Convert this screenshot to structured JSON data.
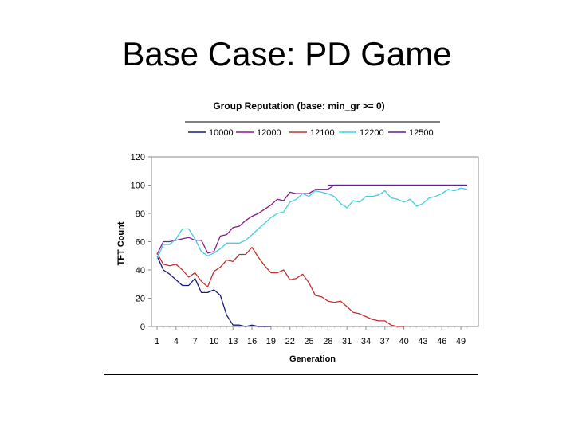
{
  "slide": {
    "title": "Base Case: PD Game"
  },
  "chart_data": {
    "type": "line",
    "title": "Group Reputation (base: min_gr >= 0)",
    "xlabel": "Generation",
    "ylabel": "TFT Count",
    "ylim": [
      0,
      120
    ],
    "yticks": [
      0,
      20,
      40,
      60,
      80,
      100,
      120
    ],
    "xlim": [
      1,
      50
    ],
    "xticks": [
      1,
      4,
      7,
      10,
      13,
      16,
      19,
      22,
      25,
      28,
      31,
      34,
      37,
      40,
      43,
      46,
      49
    ],
    "legend_position": "top",
    "grid": false,
    "series": [
      {
        "name": "10000",
        "color": "#1a1a7a",
        "x": [
          1,
          2,
          3,
          4,
          5,
          6,
          7,
          8,
          9,
          10,
          11,
          12,
          13,
          14,
          15,
          16,
          17,
          18,
          19
        ],
        "values": [
          50,
          40,
          37,
          33,
          29,
          29,
          34,
          24,
          24,
          26,
          22,
          8,
          1,
          1,
          0,
          1,
          0,
          0,
          0
        ]
      },
      {
        "name": "12000",
        "color": "#8a1a8a",
        "x": [
          1,
          2,
          3,
          4,
          5,
          6,
          7,
          8,
          9,
          10,
          11,
          12,
          13,
          14,
          15,
          16,
          17,
          18,
          19,
          20,
          21,
          22,
          23,
          24,
          25,
          26,
          27,
          28,
          29,
          30,
          31,
          32,
          33,
          34,
          35,
          36,
          37,
          38,
          39,
          40,
          41,
          42,
          43,
          44,
          45,
          46,
          47,
          48,
          49,
          50
        ],
        "values": [
          51,
          60,
          60,
          61,
          62,
          63,
          61,
          61,
          52,
          53,
          64,
          65,
          70,
          71,
          75,
          78,
          80,
          83,
          86,
          90,
          89,
          95,
          94,
          94,
          94,
          97,
          97,
          97,
          100,
          100,
          100,
          100,
          100,
          100,
          100,
          100,
          100,
          100,
          100,
          100,
          100,
          100,
          100,
          100,
          100,
          100,
          100,
          100,
          100,
          100
        ]
      },
      {
        "name": "12100",
        "color": "#c03030",
        "x": [
          1,
          2,
          3,
          4,
          5,
          6,
          7,
          8,
          9,
          10,
          11,
          12,
          13,
          14,
          15,
          16,
          17,
          18,
          19,
          20,
          21,
          22,
          23,
          24,
          25,
          26,
          27,
          28,
          29,
          30,
          31,
          32,
          33,
          34,
          35,
          36,
          37,
          38,
          39,
          40
        ],
        "values": [
          52,
          44,
          43,
          44,
          40,
          35,
          38,
          32,
          28,
          39,
          42,
          47,
          46,
          51,
          51,
          56,
          49,
          43,
          38,
          38,
          40,
          33,
          34,
          37,
          31,
          22,
          21,
          18,
          17,
          18,
          14,
          10,
          9,
          7,
          5,
          4,
          4,
          1,
          0,
          0
        ]
      },
      {
        "name": "12200",
        "color": "#40d0e0",
        "x": [
          1,
          2,
          3,
          4,
          5,
          6,
          7,
          8,
          9,
          10,
          11,
          12,
          13,
          14,
          15,
          16,
          17,
          18,
          19,
          20,
          21,
          22,
          23,
          24,
          25,
          26,
          27,
          28,
          29,
          30,
          31,
          32,
          33,
          34,
          35,
          36,
          37,
          38,
          39,
          40,
          41,
          42,
          43,
          44,
          45,
          46,
          47,
          48,
          49,
          50
        ],
        "values": [
          48,
          58,
          58,
          62,
          69,
          69,
          62,
          53,
          50,
          52,
          55,
          59,
          59,
          59,
          61,
          65,
          69,
          73,
          77,
          80,
          81,
          88,
          90,
          94,
          92,
          96,
          95,
          94,
          92,
          87,
          84,
          89,
          88,
          92,
          92,
          93,
          96,
          91,
          90,
          88,
          90,
          85,
          87,
          91,
          92,
          94,
          97,
          96,
          98,
          97
        ]
      },
      {
        "name": "12500",
        "color": "#602090",
        "x": [
          28,
          29,
          30,
          31,
          32,
          33,
          34,
          35,
          36,
          37,
          38,
          39,
          40,
          41,
          42,
          43,
          44,
          45,
          46,
          47,
          48,
          49,
          50
        ],
        "values": [
          100,
          100,
          100,
          100,
          100,
          100,
          100,
          100,
          100,
          100,
          100,
          100,
          100,
          100,
          100,
          100,
          100,
          100,
          100,
          100,
          100,
          100,
          100
        ]
      }
    ]
  }
}
